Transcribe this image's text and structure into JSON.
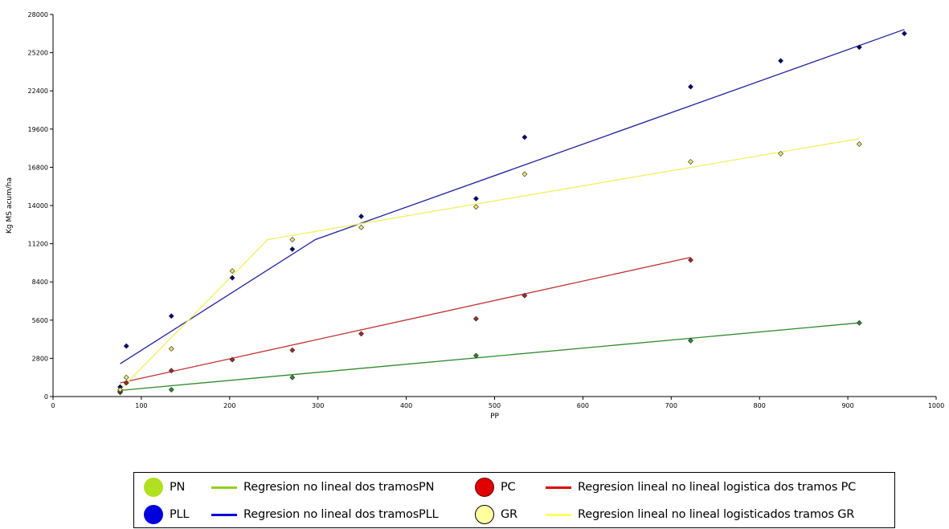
{
  "chart_data": {
    "type": "scatter",
    "xlabel": "PP",
    "ylabel": "Kg MS acum/ha",
    "xlim": [
      0,
      1000
    ],
    "ylim": [
      0,
      28000
    ],
    "xticks": [
      0,
      100,
      200,
      300,
      400,
      500,
      600,
      700,
      800,
      900,
      1000
    ],
    "yticks": [
      0,
      2800,
      5600,
      8400,
      11200,
      14000,
      16800,
      19600,
      22400,
      25200,
      28000
    ],
    "series": [
      {
        "name": "PN",
        "color": "#2e8b2e",
        "points": [
          [
            76,
            300
          ],
          [
            134,
            500
          ],
          [
            271,
            1400
          ],
          [
            479,
            3000
          ],
          [
            722,
            4100
          ],
          [
            913,
            5400
          ]
        ]
      },
      {
        "name": "PLL",
        "color": "#000080",
        "points": [
          [
            76,
            700
          ],
          [
            83,
            3700
          ],
          [
            134,
            5900
          ],
          [
            203,
            8700
          ],
          [
            271,
            10800
          ],
          [
            349,
            13200
          ],
          [
            479,
            14500
          ],
          [
            534,
            19000
          ],
          [
            722,
            22700
          ],
          [
            824,
            24600
          ],
          [
            913,
            25600
          ],
          [
            964,
            26600
          ]
        ]
      },
      {
        "name": "PC",
        "color": "#a52a2a",
        "points": [
          [
            76,
            400
          ],
          [
            83,
            1000
          ],
          [
            134,
            1900
          ],
          [
            203,
            2700
          ],
          [
            271,
            3400
          ],
          [
            349,
            4600
          ],
          [
            479,
            5700
          ],
          [
            534,
            7400
          ],
          [
            722,
            10000
          ]
        ]
      },
      {
        "name": "GR",
        "color": "#e8e870",
        "points": [
          [
            76,
            500
          ],
          [
            83,
            1400
          ],
          [
            134,
            3500
          ],
          [
            203,
            9200
          ],
          [
            271,
            11500
          ],
          [
            349,
            12400
          ],
          [
            479,
            13900
          ],
          [
            534,
            16300
          ],
          [
            722,
            17200
          ],
          [
            824,
            17800
          ],
          [
            913,
            18500
          ]
        ]
      }
    ],
    "fits": [
      {
        "name": "Regresion no lineal dos tramosPN",
        "color": "#2e8b2e",
        "points": [
          [
            76,
            450
          ],
          [
            913,
            5400
          ]
        ]
      },
      {
        "name": "Regresion no lineal  dos tramosPLL",
        "color": "#2020a0",
        "points": [
          [
            76,
            2400
          ],
          [
            297,
            11500
          ],
          [
            964,
            26900
          ]
        ]
      },
      {
        "name": "Regresion lineal  no lineal logistica dos tramos PC",
        "color": "#c03030",
        "points": [
          [
            76,
            1000
          ],
          [
            722,
            10200
          ]
        ]
      },
      {
        "name": "Regresion lineal  no lineal logisticados tramos GR",
        "color": "#f0f060",
        "points": [
          [
            76,
            500
          ],
          [
            243,
            11500
          ],
          [
            913,
            18900
          ]
        ]
      }
    ]
  },
  "legend": {
    "items": [
      {
        "label": "PN",
        "kind": "circle",
        "color": "#b0e020"
      },
      {
        "label": "Regresion no lineal dos tramosPN",
        "kind": "line",
        "color": "#90d020"
      },
      {
        "label": "PC",
        "kind": "circle",
        "color": "#e00000"
      },
      {
        "label": "Regresion lineal  no lineal logistica dos tramos PC",
        "kind": "line",
        "color": "#e00000"
      },
      {
        "label": "PLL",
        "kind": "circle",
        "color": "#0000dd"
      },
      {
        "label": "Regresion no lineal  dos tramosPLL",
        "kind": "line",
        "color": "#0000dd"
      },
      {
        "label": "GR",
        "kind": "circle",
        "color": "#ffffa0"
      },
      {
        "label": "Regresion lineal  no lineal logisticados tramos GR",
        "kind": "line",
        "color": "#ffff60"
      }
    ]
  }
}
